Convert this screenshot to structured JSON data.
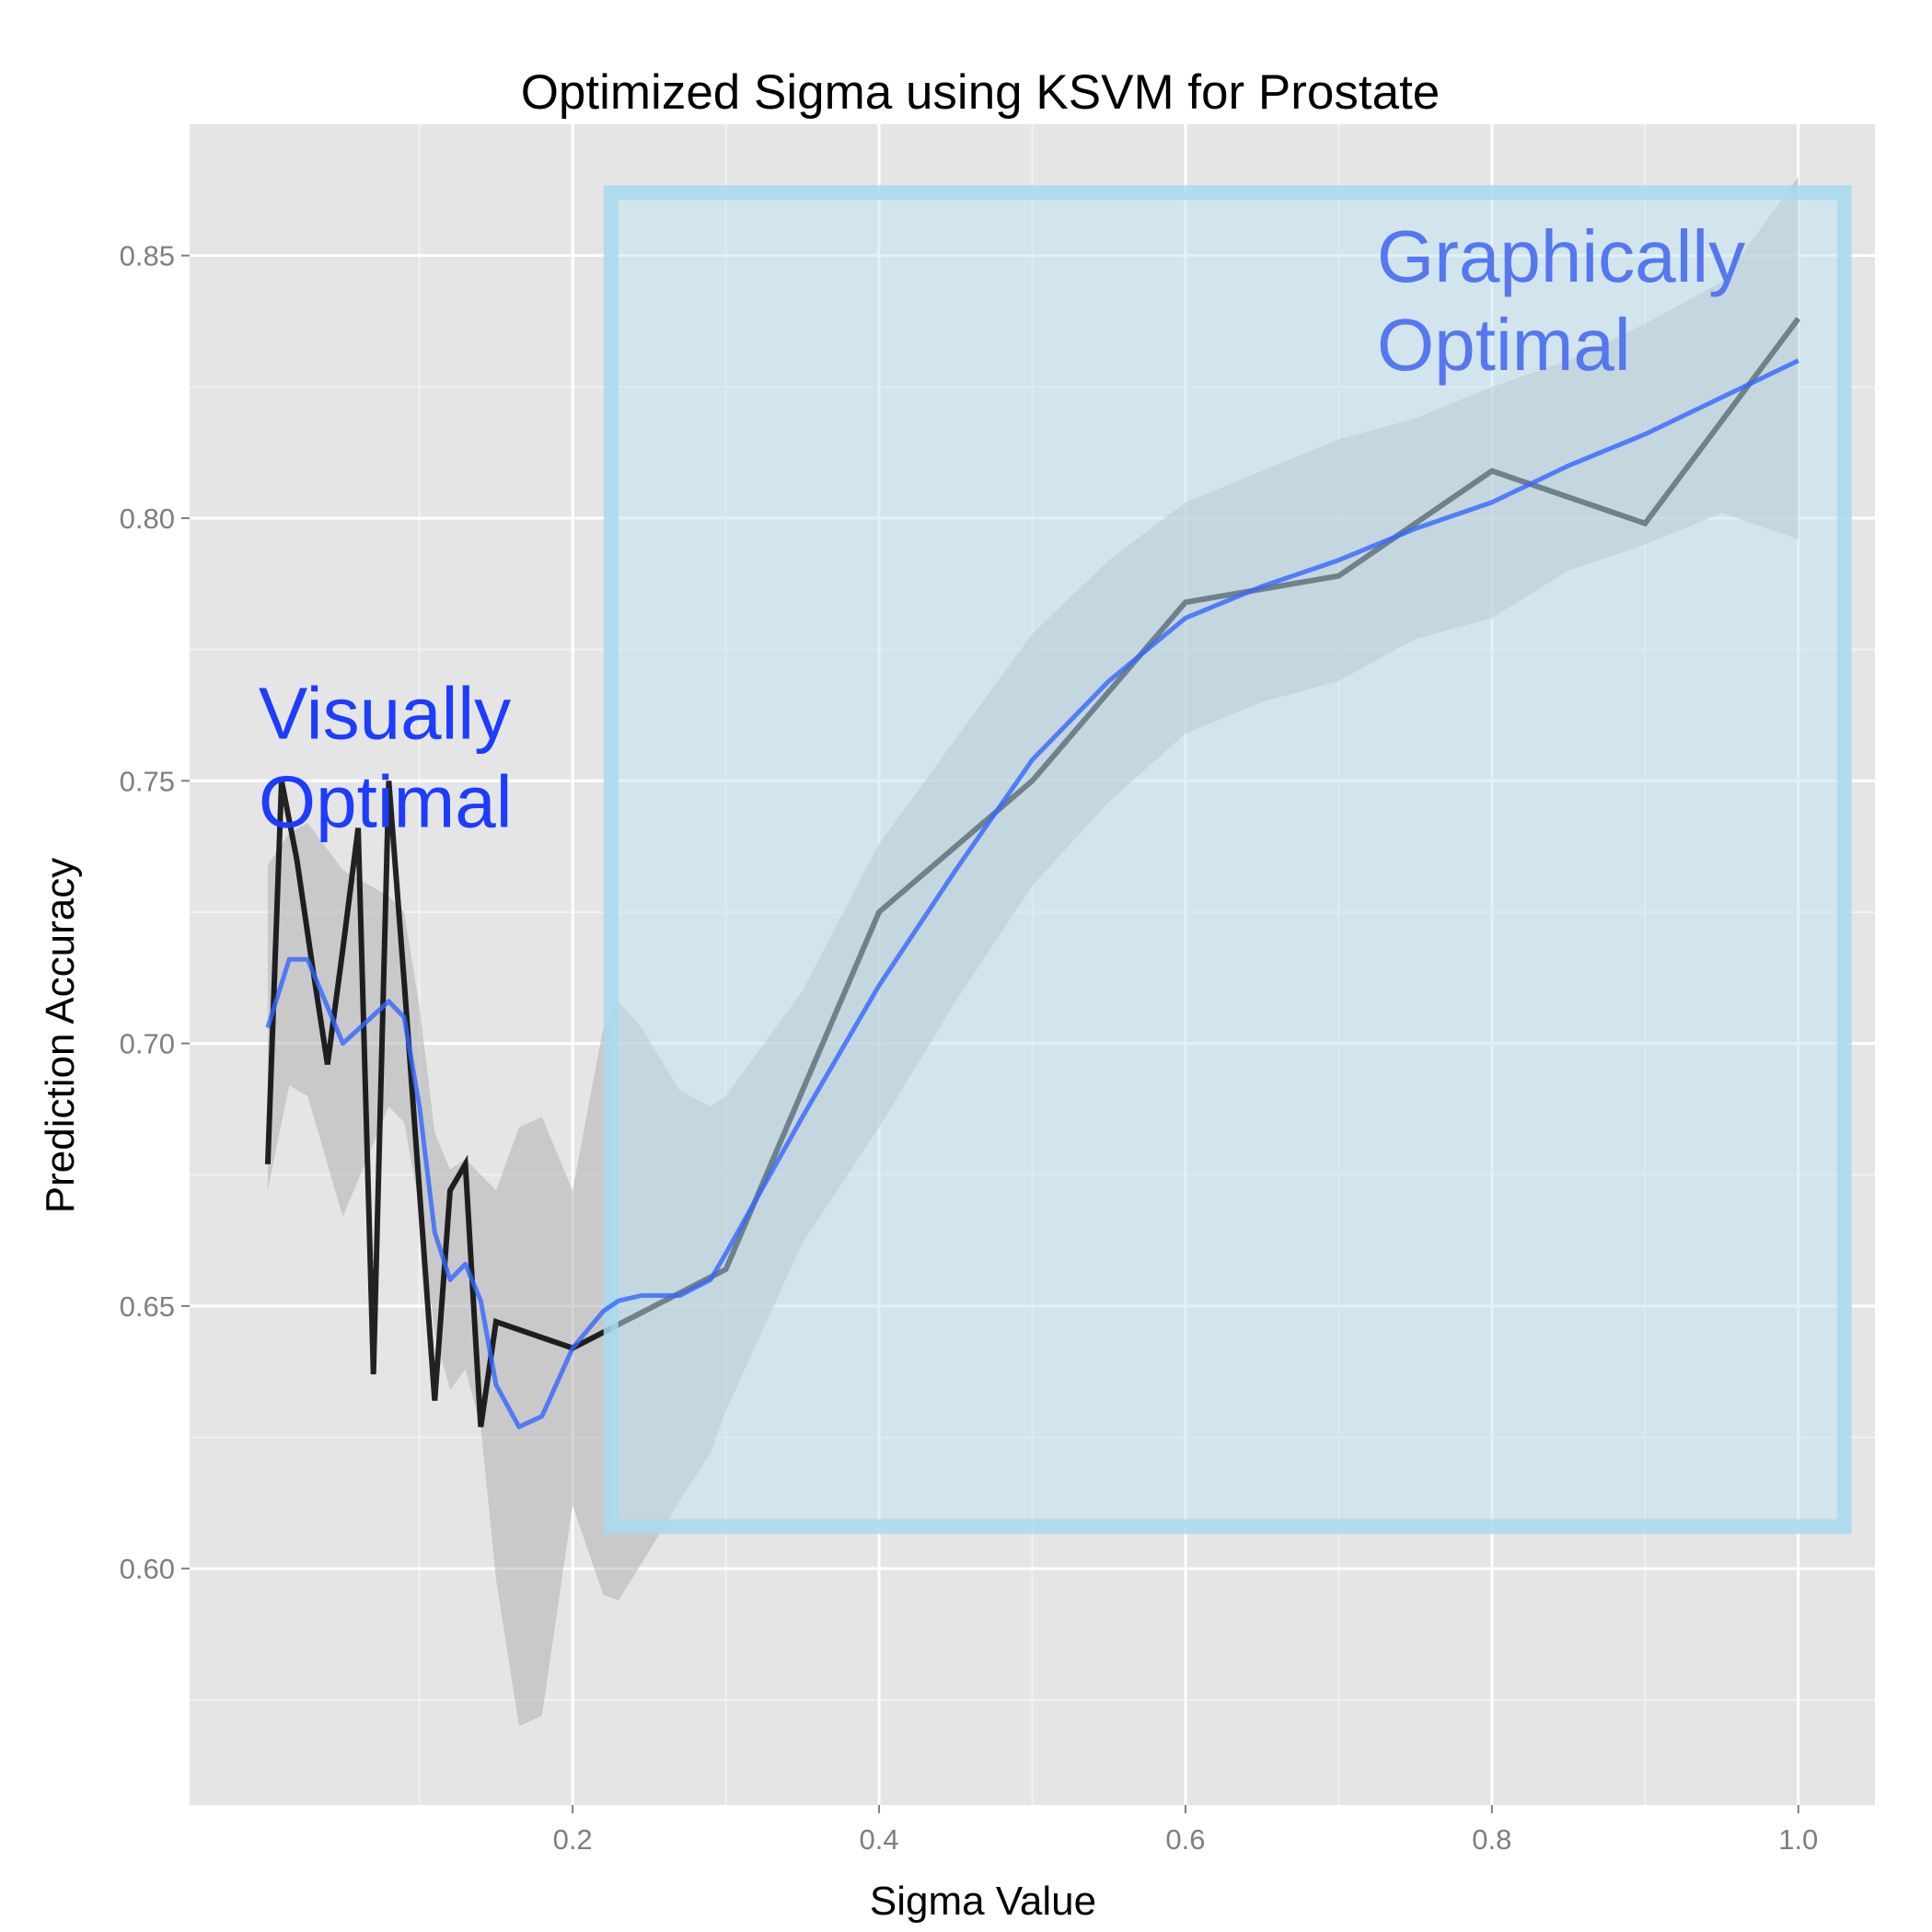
{
  "chart_data": {
    "type": "line",
    "title": "Optimized Sigma using KSVM for Prostate",
    "xlabel": "Sigma Value",
    "ylabel": "Prediction Accuracy",
    "xlim": [
      -0.05,
      1.05
    ],
    "ylim": [
      0.555,
      0.875
    ],
    "x_ticks": [
      0.2,
      0.4,
      0.6,
      0.8,
      1.0
    ],
    "x_tick_labels": [
      "0.2",
      "0.4",
      "0.6",
      "0.8",
      "1.0"
    ],
    "y_ticks": [
      0.6,
      0.65,
      0.7,
      0.75,
      0.8,
      0.85
    ],
    "y_tick_labels": [
      "0.60",
      "0.65",
      "0.70",
      "0.75",
      "0.80",
      "0.85"
    ],
    "grid": true,
    "series": [
      {
        "kind": "observed",
        "color": "#000000",
        "x": [
          0.001,
          0.01,
          0.02,
          0.03,
          0.04,
          0.05,
          0.06,
          0.07,
          0.08,
          0.09,
          0.1,
          0.11,
          0.12,
          0.13,
          0.14,
          0.15,
          0.2,
          0.3,
          0.4,
          0.5,
          0.6,
          0.7,
          0.8,
          0.9,
          1.0
        ],
        "y": [
          0.677,
          0.75,
          0.735,
          0.715,
          0.696,
          0.718,
          0.741,
          0.637,
          0.75,
          0.712,
          0.672,
          0.632,
          0.672,
          0.677,
          0.627,
          0.647,
          0.642,
          0.657,
          0.725,
          0.75,
          0.784,
          0.789,
          0.809,
          0.799,
          0.838
        ]
      },
      {
        "kind": "smoothed",
        "color": "#3366ff",
        "x": [
          0.001,
          0.015,
          0.027,
          0.05,
          0.08,
          0.09,
          0.1,
          0.11,
          0.12,
          0.13,
          0.14,
          0.15,
          0.165,
          0.18,
          0.2,
          0.22,
          0.23,
          0.245,
          0.27,
          0.29,
          0.3,
          0.35,
          0.4,
          0.45,
          0.5,
          0.55,
          0.6,
          0.65,
          0.7,
          0.75,
          0.8,
          0.85,
          0.9,
          0.95,
          1.0
        ],
        "y": [
          0.703,
          0.716,
          0.716,
          0.7,
          0.708,
          0.705,
          0.688,
          0.664,
          0.655,
          0.658,
          0.651,
          0.635,
          0.627,
          0.629,
          0.642,
          0.649,
          0.651,
          0.652,
          0.652,
          0.655,
          0.66,
          0.686,
          0.711,
          0.733,
          0.754,
          0.769,
          0.781,
          0.787,
          0.792,
          0.798,
          0.803,
          0.81,
          0.816,
          0.823,
          0.83
        ],
        "ci_upper": [
          0.734,
          0.74,
          0.742,
          0.733,
          0.728,
          0.725,
          0.707,
          0.683,
          0.676,
          0.678,
          0.675,
          0.672,
          0.684,
          0.686,
          0.672,
          0.703,
          0.708,
          0.703,
          0.691,
          0.688,
          0.69,
          0.71,
          0.738,
          0.758,
          0.778,
          0.792,
          0.803,
          0.809,
          0.815,
          0.819,
          0.825,
          0.83,
          0.837,
          0.845,
          0.865
        ],
        "ci_lower": [
          0.672,
          0.692,
          0.69,
          0.667,
          0.688,
          0.685,
          0.669,
          0.645,
          0.634,
          0.638,
          0.627,
          0.598,
          0.57,
          0.572,
          0.612,
          0.595,
          0.594,
          0.601,
          0.613,
          0.622,
          0.63,
          0.662,
          0.684,
          0.708,
          0.73,
          0.746,
          0.759,
          0.765,
          0.769,
          0.777,
          0.781,
          0.79,
          0.795,
          0.801,
          0.796
        ]
      }
    ],
    "annotations": [
      {
        "line1": "Visually",
        "line2": "Optimal",
        "color": "#1c3dff",
        "x": -0.005,
        "y": 0.758
      },
      {
        "line1": "Graphically",
        "line2": "Optimal",
        "color": "#5577f0",
        "x": 0.725,
        "y": 0.845
      }
    ],
    "highlight_region": {
      "x": [
        0.225,
        1.03
      ],
      "y": [
        0.608,
        0.862
      ],
      "fill": "#bfe4f4",
      "border": "#a9d9ee"
    },
    "colors": {
      "panel": "#e5e5e5",
      "grid_major": "#ffffff",
      "grid_minor": "#f2f2f2",
      "ribbon": "#b3b3b3"
    }
  }
}
